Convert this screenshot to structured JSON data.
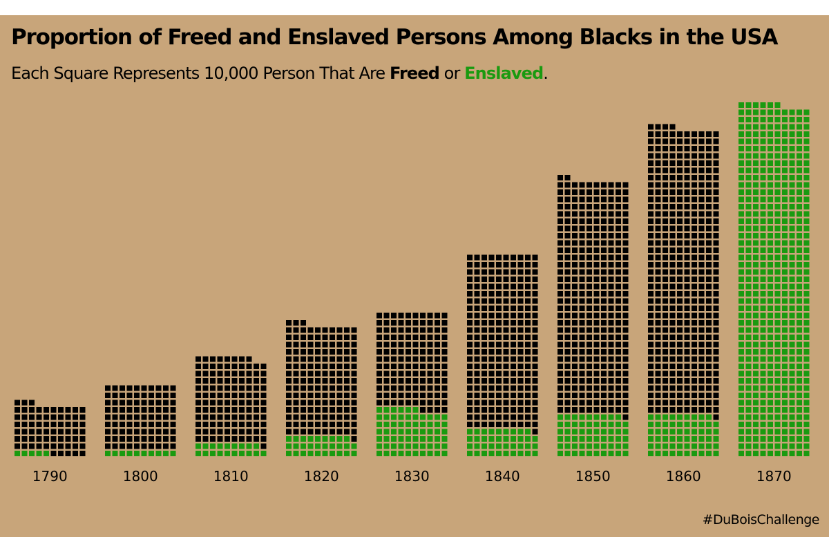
{
  "header": {
    "title": "Proportion of Freed and Enslaved Persons Among Blacks in the USA",
    "subtitle_prefix": "Each Square Represents 10,000 Person That Are ",
    "subtitle_freed": "Freed",
    "subtitle_or": " or ",
    "subtitle_enslaved": "Enslaved",
    "subtitle_end": "."
  },
  "footer": {
    "hashtag": "#DuBoisChallenge"
  },
  "colors": {
    "background": "#c8a57a",
    "enslaved_square": "#000000",
    "freed_square": "#1a9a10",
    "text": "#000000"
  },
  "chart_data": {
    "type": "waffle-bar",
    "unit": 10000,
    "columns_per_bar": 10,
    "categories": [
      "1790",
      "1800",
      "1810",
      "1820",
      "1830",
      "1840",
      "1850",
      "1860",
      "1870"
    ],
    "series": [
      {
        "name": "Freed",
        "color": "#1a9a10",
        "values": [
          5,
          10,
          19,
          29,
          66,
          39,
          59,
          59,
          486
        ]
      },
      {
        "name": "Enslaved",
        "color": "#000000",
        "values": [
          68,
          90,
          119,
          154,
          134,
          241,
          323,
          395,
          0
        ]
      }
    ]
  }
}
